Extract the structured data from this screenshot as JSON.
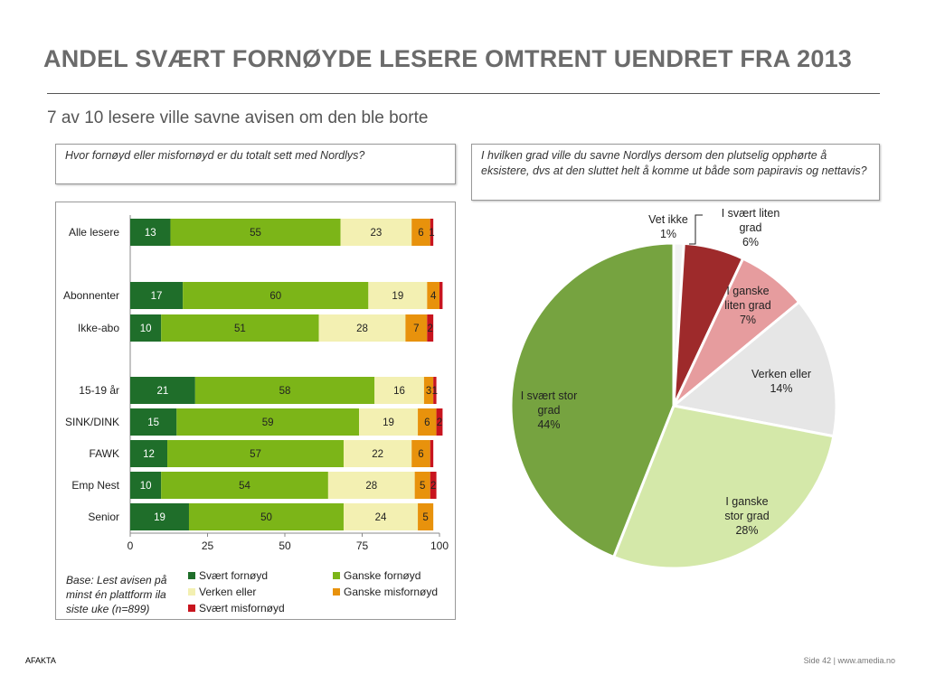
{
  "slide": {
    "title": "ANDEL SVÆRT FORNØYDE LESERE OMTRENT UENDRET FRA 2013",
    "subtitle": "7 av 10 lesere ville savne avisen om den ble borte",
    "question_left": "Hvor fornøyd eller misfornøyd er du totalt sett med Nordlys?",
    "question_right": "I hvilken grad ville du savne Nordlys dersom den plutselig opphørte å eksistere, dvs at den sluttet helt å komme ut både som papiravis og nettavis?",
    "base_note": "Base: Lest avisen på minst én plattform ila siste uke (n=899)",
    "footer_left": "AFAKTA",
    "footer_right": "Side  42  |  www.amedia.no"
  },
  "chart_data": [
    {
      "type": "bar",
      "orientation": "horizontal",
      "stacked": true,
      "categories": [
        "Alle lesere",
        "Abonnenter",
        "Ikke-abo",
        "15-19 år",
        "SINK/DINK",
        "FAWK",
        "Emp Nest",
        "Senior"
      ],
      "series": [
        {
          "name": "Svært fornøyd",
          "color": "#1f6e2a",
          "values": [
            13,
            17,
            10,
            21,
            15,
            12,
            10,
            19
          ]
        },
        {
          "name": "Ganske fornøyd",
          "color": "#7cb518",
          "values": [
            55,
            60,
            51,
            58,
            59,
            57,
            54,
            50
          ]
        },
        {
          "name": "Verken eller",
          "color": "#f3f0b2",
          "values": [
            23,
            19,
            28,
            16,
            19,
            22,
            28,
            24
          ]
        },
        {
          "name": "Ganske misfornøyd",
          "color": "#e8920c",
          "values": [
            6,
            4,
            7,
            3,
            6,
            6,
            5,
            5
          ]
        },
        {
          "name": "Svært misfornøyd",
          "color": "#c8141e",
          "values": [
            1,
            1,
            2,
            1,
            2,
            1,
            2,
            0
          ]
        }
      ],
      "labels": [
        [
          "13",
          "55",
          "23",
          "6",
          "1"
        ],
        [
          "17",
          "60",
          "19",
          "4",
          ""
        ],
        [
          "10",
          "51",
          "28",
          "7",
          "2"
        ],
        [
          "21",
          "58",
          "16",
          "3",
          "1"
        ],
        [
          "15",
          "59",
          "19",
          "6",
          "2"
        ],
        [
          "12",
          "57",
          "22",
          "6",
          ""
        ],
        [
          "10",
          "54",
          "28",
          "5",
          "2"
        ],
        [
          "19",
          "50",
          "24",
          "5",
          ""
        ]
      ],
      "xlim": [
        0,
        100
      ],
      "xticks": [
        "0",
        "25",
        "50",
        "75",
        "100"
      ],
      "legend_position": "bottom"
    },
    {
      "type": "pie",
      "slices": [
        {
          "label_lines": [
            "Vet ikke",
            "1%"
          ],
          "value": 1,
          "color": "#f2f2f2"
        },
        {
          "label_lines": [
            "I svært liten",
            "grad",
            "6%"
          ],
          "value": 6,
          "color": "#9e2a2b"
        },
        {
          "label_lines": [
            "I ganske",
            "liten grad",
            "7%"
          ],
          "value": 7,
          "color": "#e69c9e"
        },
        {
          "label_lines": [
            "Verken eller",
            "14%"
          ],
          "value": 14,
          "color": "#e6e6e6"
        },
        {
          "label_lines": [
            "I ganske",
            "stor grad",
            "28%"
          ],
          "value": 28,
          "color": "#d4e8a9"
        },
        {
          "label_lines": [
            "I svært stor",
            "grad",
            "44%"
          ],
          "value": 44,
          "color": "#76a340"
        }
      ]
    }
  ]
}
